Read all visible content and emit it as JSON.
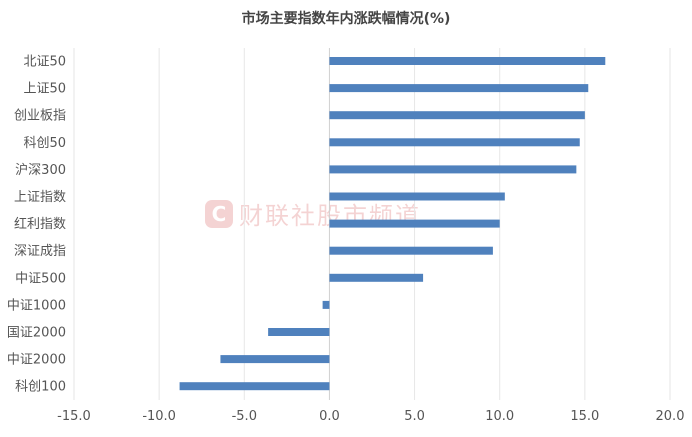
{
  "chart_data": {
    "type": "bar",
    "orientation": "horizontal",
    "title": "市场主要指数年内涨跌幅情况(%)",
    "categories": [
      "北证50",
      "上证50",
      "创业板指",
      "科创50",
      "沪深300",
      "上证指数",
      "红利指数",
      "深证成指",
      "中证500",
      "中证1000",
      "国证2000",
      "中证2000",
      "科创100"
    ],
    "values": [
      16.2,
      15.2,
      15.0,
      14.7,
      14.5,
      10.3,
      10.0,
      9.6,
      5.5,
      -0.4,
      -3.6,
      -6.4,
      -8.8
    ],
    "xlim": [
      -15,
      20
    ],
    "xticks": [
      "-15.0",
      "-10.0",
      "-5.0",
      "0.0",
      "5.0",
      "10.0",
      "15.0",
      "20.0"
    ],
    "grid": true,
    "bar_color": "#4f81bd",
    "watermark": {
      "logo": "C",
      "text": "财联社股市频道"
    }
  }
}
